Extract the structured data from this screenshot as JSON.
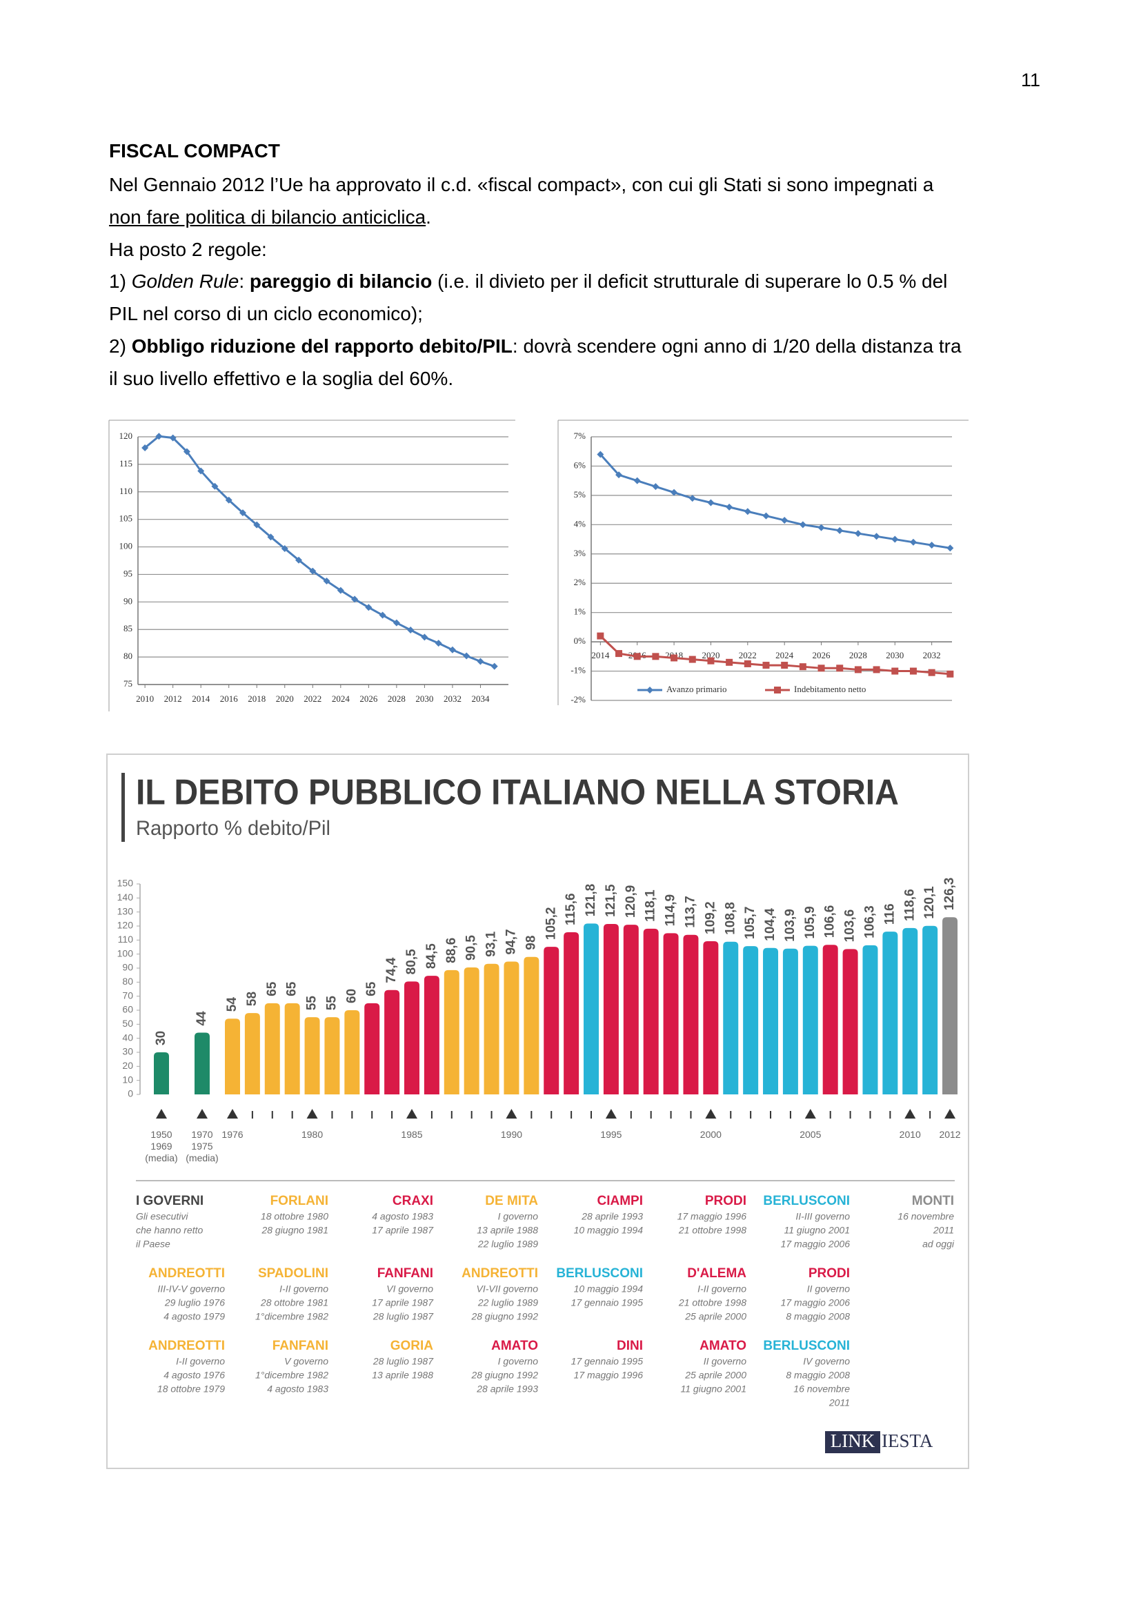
{
  "page_number": "11",
  "document": {
    "title": "FISCAL COMPACT",
    "lines": [
      [
        {
          "text": "Nel Gennaio 2012 l’Ue ha approvato il c.d. «fiscal compact», con cui gli Stati si sono impegnati a"
        }
      ],
      [
        {
          "text": "non fare politica di bilancio anticiclica",
          "style": "underline"
        },
        {
          "text": "."
        }
      ],
      [
        {
          "text": "Ha posto 2 regole:"
        }
      ],
      [
        {
          "text": "1) "
        },
        {
          "text": "Golden Rule",
          "style": "italic"
        },
        {
          "text": ": "
        },
        {
          "text": "pareggio di bilancio",
          "style": "bold"
        },
        {
          "text": " (i.e. il divieto per il deficit strutturale di superare lo 0.5 % del"
        }
      ],
      [
        {
          "text": "PIL nel corso di un ciclo economico);"
        }
      ],
      [
        {
          "text": "2) "
        },
        {
          "text": "Obbligo riduzione del rapporto debito/PIL",
          "style": "bold"
        },
        {
          "text": ": dovrà scendere ogni anno di 1/20 della distanza tra"
        }
      ],
      [
        {
          "text": "il suo livello effettivo e la soglia del 60%."
        }
      ]
    ]
  },
  "chart_data": [
    {
      "type": "line",
      "x": [
        2010,
        2011,
        2012,
        2013,
        2014,
        2015,
        2016,
        2017,
        2018,
        2019,
        2020,
        2021,
        2022,
        2023,
        2024,
        2025,
        2026,
        2027,
        2028,
        2029,
        2030,
        2031,
        2032,
        2033,
        2034,
        2035
      ],
      "values": [
        118,
        120.1,
        119.8,
        117.3,
        113.8,
        111,
        108.5,
        106.2,
        104,
        101.8,
        99.7,
        97.6,
        95.6,
        93.8,
        92.1,
        90.5,
        89,
        87.6,
        86.2,
        84.9,
        83.6,
        82.5,
        81.3,
        80.2,
        79.2,
        78.3
      ],
      "color": "#4a7ebb",
      "marker": "diamond",
      "xlim": [
        2009.5,
        2036
      ],
      "ylim": [
        75,
        120
      ],
      "xticks": [
        2010,
        2012,
        2014,
        2016,
        2018,
        2020,
        2022,
        2024,
        2026,
        2028,
        2030,
        2032,
        2034
      ],
      "yticks": [
        75,
        80,
        85,
        90,
        95,
        100,
        105,
        110,
        115,
        120
      ],
      "grid": true
    },
    {
      "type": "line",
      "x": [
        2014,
        2015,
        2016,
        2017,
        2018,
        2019,
        2020,
        2021,
        2022,
        2023,
        2024,
        2025,
        2026,
        2027,
        2028,
        2029,
        2030,
        2031,
        2032,
        2033
      ],
      "series": [
        {
          "name": "Avanzo primario",
          "color": "#4a7ebb",
          "marker": "diamond",
          "values": [
            6.4,
            5.7,
            5.5,
            5.3,
            5.1,
            4.9,
            4.75,
            4.6,
            4.45,
            4.3,
            4.15,
            4,
            3.9,
            3.8,
            3.7,
            3.6,
            3.5,
            3.4,
            3.3,
            3.2
          ]
        },
        {
          "name": "Indebitamento netto",
          "color": "#c0504d",
          "marker": "square",
          "values": [
            0.2,
            -0.4,
            -0.5,
            -0.5,
            -0.55,
            -0.6,
            -0.65,
            -0.7,
            -0.75,
            -0.8,
            -0.8,
            -0.85,
            -0.9,
            -0.9,
            -0.95,
            -0.95,
            -1,
            -1,
            -1.05,
            -1.1
          ]
        }
      ],
      "xlim": [
        2013.5,
        2033.1
      ],
      "ylim": [
        -2,
        7
      ],
      "xticks": [
        2014,
        2016,
        2018,
        2020,
        2022,
        2024,
        2026,
        2028,
        2030,
        2032
      ],
      "yticks": [
        {
          "value": -2,
          "label": "-2%"
        },
        {
          "value": -1,
          "label": "-1%"
        },
        {
          "value": 0,
          "label": "0%"
        },
        {
          "value": 1,
          "label": "1%"
        },
        {
          "value": 2,
          "label": "2%"
        },
        {
          "value": 3,
          "label": "3%"
        },
        {
          "value": 4,
          "label": "4%"
        },
        {
          "value": 5,
          "label": "5%"
        },
        {
          "value": 6,
          "label": "6%"
        },
        {
          "value": 7,
          "label": "7%"
        }
      ],
      "grid": true,
      "legend": "bottom"
    },
    {
      "type": "bar",
      "title": "IL DEBITO PUBBLICO ITALIANO NELLA STORIA",
      "subtitle": "Rapporto % debito/Pil",
      "categories": [
        "1950\n1969\n(media)",
        "1970\n1975\n(media)",
        "1976",
        null,
        null,
        null,
        "1980",
        null,
        null,
        null,
        null,
        "1985",
        null,
        null,
        null,
        null,
        "1990",
        null,
        null,
        null,
        null,
        "1995",
        null,
        null,
        null,
        null,
        "2000",
        null,
        null,
        null,
        null,
        "2005",
        null,
        null,
        null,
        null,
        "2010",
        null,
        "2012"
      ],
      "values": [
        30,
        44,
        54,
        58,
        65,
        65,
        55,
        55,
        60,
        65,
        74.4,
        80.5,
        84.5,
        88.6,
        90.5,
        93.1,
        94.7,
        98,
        105.2,
        115.6,
        121.8,
        121.5,
        120.9,
        118.1,
        114.9,
        113.7,
        109.2,
        108.8,
        105.7,
        104.4,
        103.9,
        105.9,
        106.6,
        103.6,
        106.3,
        116,
        118.6,
        120.1,
        126.3
      ],
      "value_labels": [
        "30",
        "44",
        "54",
        "58",
        "65",
        "65",
        "55",
        "55",
        "60",
        "65",
        "74,4",
        "80,5",
        "84,5",
        "88,6",
        "90,5",
        "93,1",
        "94,7",
        "98",
        "105,2",
        "115,6",
        "121,8",
        "121,5",
        "120,9",
        "118,1",
        "114,9",
        "113,7",
        "109,2",
        "108,8",
        "105,7",
        "104,4",
        "103,9",
        "105,9",
        "106,6",
        "103,6",
        "106,3",
        "116",
        "118,6",
        "120,1",
        "126,3"
      ],
      "colors": [
        "#1e8a68",
        "#1e8a68",
        "#f5b335",
        "#f5b335",
        "#f5b335",
        "#f5b335",
        "#f5b335",
        "#f5b335",
        "#f5b335",
        "#d91a47",
        "#d91a47",
        "#d91a47",
        "#d91a47",
        "#f5b335",
        "#f5b335",
        "#f5b335",
        "#f5b335",
        "#f5b335",
        "#d91a47",
        "#d91a47",
        "#27b3d6",
        "#d91a47",
        "#d91a47",
        "#d91a47",
        "#d91a47",
        "#d91a47",
        "#d91a47",
        "#27b3d6",
        "#27b3d6",
        "#27b3d6",
        "#27b3d6",
        "#27b3d6",
        "#d91a47",
        "#d91a47",
        "#27b3d6",
        "#27b3d6",
        "#27b3d6",
        "#27b3d6",
        "#8c8c8c"
      ],
      "ylim": [
        0,
        150
      ],
      "yticks": [
        0,
        10,
        20,
        30,
        40,
        50,
        60,
        70,
        80,
        90,
        100,
        110,
        120,
        130,
        140,
        150
      ]
    }
  ],
  "infographic": {
    "governments": [
      [
        {
          "name": "I GOVERNI",
          "color": "#444444",
          "lines": [
            "Gli esecutivi",
            "che hanno retto",
            "il Paese"
          ]
        },
        {
          "name": "FORLANI",
          "color": "#f5b335",
          "lines": [
            "18 ottobre 1980",
            "28 giugno 1981"
          ]
        },
        {
          "name": "CRAXI",
          "color": "#d91a47",
          "lines": [
            "4 agosto 1983",
            "17 aprile 1987"
          ]
        },
        {
          "name": "DE MITA",
          "color": "#f5b335",
          "lines": [
            "I governo",
            "13 aprile 1988",
            "22 luglio 1989"
          ]
        },
        {
          "name": "CIAMPI",
          "color": "#d91a47",
          "lines": [
            "28 aprile 1993",
            "10 maggio 1994"
          ]
        },
        {
          "name": "PRODI",
          "color": "#d91a47",
          "lines": [
            "17 maggio 1996",
            "21 ottobre 1998"
          ]
        },
        {
          "name": "BERLUSCONI",
          "color": "#27b3d6",
          "lines": [
            "II-III governo",
            "11 giugno 2001",
            "17 maggio 2006"
          ]
        },
        {
          "name": "MONTI",
          "color": "#8c8c8c",
          "lines": [
            "16 novembre",
            "2011",
            "ad oggi"
          ]
        }
      ],
      [
        {
          "name": "ANDREOTTI",
          "color": "#f5b335",
          "lines": [
            "III-IV-V governo",
            "29 luglio 1976",
            "4 agosto 1979"
          ]
        },
        {
          "name": "SPADOLINI",
          "color": "#f5b335",
          "lines": [
            "I-II governo",
            "28 ottobre 1981",
            "1°dicembre 1982"
          ]
        },
        {
          "name": "FANFANI",
          "color": "#d91a47",
          "lines": [
            "VI governo",
            "17 aprile 1987",
            "28 luglio 1987"
          ]
        },
        {
          "name": "ANDREOTTI",
          "color": "#f5b335",
          "lines": [
            "VI-VII governo",
            "22 luglio 1989",
            "28 giugno 1992"
          ]
        },
        {
          "name": "BERLUSCONI",
          "color": "#27b3d6",
          "lines": [
            "10 maggio 1994",
            "17 gennaio 1995"
          ]
        },
        {
          "name": "D'ALEMA",
          "color": "#d91a47",
          "lines": [
            "I-II governo",
            "21 ottobre 1998",
            "25 aprile 2000"
          ]
        },
        {
          "name": "PRODI",
          "color": "#d91a47",
          "lines": [
            "II governo",
            "17 maggio 2006",
            "8 maggio 2008"
          ]
        }
      ],
      [
        {
          "name": "ANDREOTTI",
          "color": "#f5b335",
          "lines": [
            "I-II governo",
            "4 agosto 1976",
            "18 ottobre 1979"
          ]
        },
        {
          "name": "FANFANI",
          "color": "#f5b335",
          "lines": [
            "V governo",
            "1°dicembre 1982",
            "4 agosto 1983"
          ]
        },
        {
          "name": "GORIA",
          "color": "#f5b335",
          "lines": [
            "28 luglio 1987",
            "13 aprile 1988"
          ]
        },
        {
          "name": "AMATO",
          "color": "#d91a47",
          "lines": [
            "I governo",
            "28 giugno 1992",
            "28 aprile 1993"
          ]
        },
        {
          "name": "DINI",
          "color": "#d91a47",
          "lines": [
            "17 gennaio 1995",
            "17 maggio 1996"
          ]
        },
        {
          "name": "AMATO",
          "color": "#d91a47",
          "lines": [
            "II governo",
            "25 aprile 2000",
            "11 giugno 2001"
          ]
        },
        {
          "name": "BERLUSCONI",
          "color": "#27b3d6",
          "lines": [
            "IV governo",
            "8 maggio 2008",
            "16 novembre",
            "2011"
          ]
        }
      ]
    ],
    "logo": {
      "boxed": "LINK",
      "rest": "IESTA"
    }
  }
}
